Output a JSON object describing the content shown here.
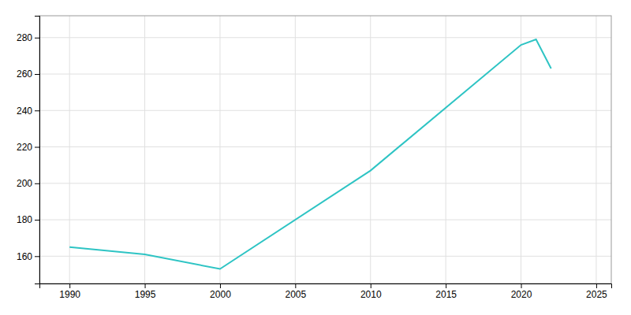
{
  "chart_data": {
    "type": "line",
    "x": [
      1990,
      1995,
      2000,
      2010,
      2020,
      2021,
      2022
    ],
    "values": [
      165,
      161,
      153,
      207,
      276,
      279,
      263
    ],
    "color": "#2EC4C4",
    "xlim": [
      1988,
      2026
    ],
    "ylim": [
      145,
      292
    ],
    "xticks": [
      1990,
      1995,
      2000,
      2005,
      2010,
      2015,
      2020,
      2025
    ],
    "yticks": [
      160,
      180,
      200,
      220,
      240,
      260,
      280
    ],
    "grid": true
  }
}
